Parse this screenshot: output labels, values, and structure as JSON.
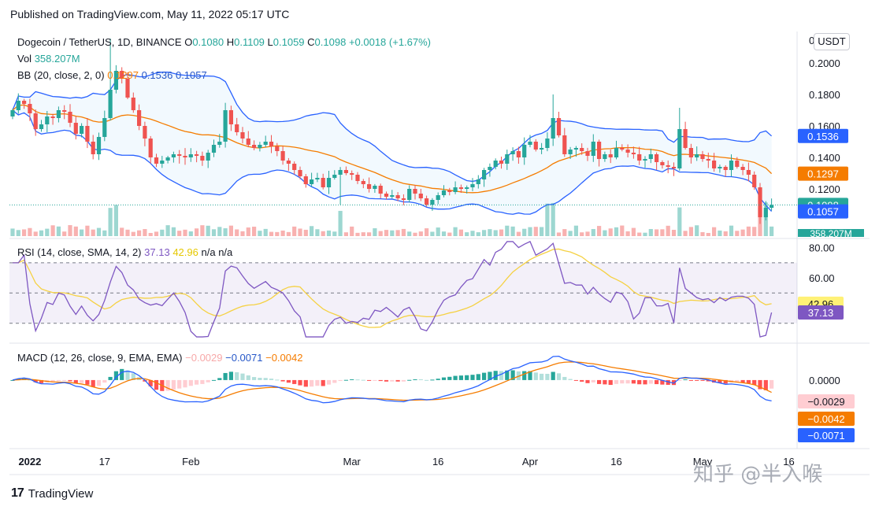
{
  "header": {
    "published": "Published on TradingView.com, May 11, 2022 05:17 UTC"
  },
  "symbol_legend": {
    "name": "Dogecoin / TetherUS, 1D, BINANCE",
    "o_label": "O",
    "o": "0.1080",
    "h_label": "H",
    "h": "0.1109",
    "l_label": "L",
    "l": "0.1059",
    "c_label": "C",
    "c": "0.1098",
    "change": "+0.0018 (+1.67%)"
  },
  "vol_legend": {
    "label": "Vol",
    "value": "358.207M"
  },
  "bb_legend": {
    "label": "BB (20, close, 2, 0)",
    "basis": "0.1297",
    "upper": "0.1536",
    "lower": "0.1057"
  },
  "rsi_legend": {
    "label": "RSI (14, close, SMA, 14, 2)",
    "rsi": "37.13",
    "sma": "42.96",
    "na1": "n/a",
    "na2": "n/a"
  },
  "macd_legend": {
    "label": "MACD (12, 26, close, 9, EMA, EMA)",
    "hist": "−0.0029",
    "macd": "−0.0071",
    "signal": "−0.0042"
  },
  "currency_button": "USDT",
  "footer": {
    "brand": "TradingView",
    "logo": "17"
  },
  "watermark": "知乎 @半入喉",
  "colors": {
    "up": "#26a69a",
    "down": "#ef5350",
    "bb_basis": "#f57c00",
    "bb_band": "#2962ff",
    "rsi": "#7e57c2",
    "rsi_sma": "#f5d142",
    "macd": "#2962ff",
    "signal": "#f57c00"
  },
  "chart_data": [
    {
      "type": "candlestick",
      "title": "Dogecoin / TetherUS, 1D, BINANCE",
      "ylim": [
        0.09,
        0.22
      ],
      "yticks": [
        "0.2000",
        "0.1800",
        "0.1600",
        "0.1400",
        "0.1200"
      ],
      "ytick_values": [
        0.2,
        0.18,
        0.16,
        0.14,
        0.12
      ],
      "y_top_partial_label": "0",
      "xticks": [
        {
          "label": "2022",
          "day": 3,
          "bold": true
        },
        {
          "label": "17",
          "day": 16
        },
        {
          "label": "Feb",
          "day": 31
        },
        {
          "label": "Mar",
          "day": 59
        },
        {
          "label": "16",
          "day": 74
        },
        {
          "label": "Apr",
          "day": 90
        },
        {
          "label": "16",
          "day": 105
        },
        {
          "label": "May",
          "day": 120
        },
        {
          "label": "16",
          "day": 135
        }
      ],
      "close": [
        0.17,
        0.176,
        0.174,
        0.168,
        0.158,
        0.161,
        0.166,
        0.165,
        0.17,
        0.169,
        0.162,
        0.155,
        0.16,
        0.15,
        0.142,
        0.153,
        0.165,
        0.183,
        0.195,
        0.19,
        0.178,
        0.17,
        0.16,
        0.152,
        0.14,
        0.136,
        0.138,
        0.14,
        0.142,
        0.141,
        0.14,
        0.142,
        0.141,
        0.138,
        0.143,
        0.148,
        0.15,
        0.17,
        0.161,
        0.156,
        0.152,
        0.148,
        0.146,
        0.148,
        0.15,
        0.147,
        0.144,
        0.138,
        0.136,
        0.132,
        0.128,
        0.123,
        0.126,
        0.127,
        0.121,
        0.127,
        0.129,
        0.132,
        0.13,
        0.129,
        0.125,
        0.123,
        0.12,
        0.122,
        0.117,
        0.115,
        0.116,
        0.114,
        0.113,
        0.12,
        0.117,
        0.114,
        0.11,
        0.113,
        0.116,
        0.119,
        0.118,
        0.121,
        0.12,
        0.121,
        0.123,
        0.126,
        0.132,
        0.134,
        0.138,
        0.136,
        0.142,
        0.144,
        0.14,
        0.148,
        0.15,
        0.145,
        0.146,
        0.152,
        0.165,
        0.154,
        0.142,
        0.145,
        0.146,
        0.144,
        0.141,
        0.15,
        0.139,
        0.142,
        0.14,
        0.146,
        0.145,
        0.143,
        0.142,
        0.138,
        0.139,
        0.142,
        0.137,
        0.135,
        0.134,
        0.133,
        0.158,
        0.146,
        0.14,
        0.142,
        0.139,
        0.138,
        0.133,
        0.134,
        0.132,
        0.138,
        0.134,
        0.132,
        0.129,
        0.121,
        0.102,
        0.108,
        0.1098
      ],
      "volume_last": "358.207M",
      "bb": {
        "basis": 0.1297,
        "upper": 0.1536,
        "lower": 0.1057
      },
      "last_price": 0.1098
    },
    {
      "type": "line",
      "title": "RSI (14, close, SMA, 14, 2)",
      "ylim": [
        20,
        85
      ],
      "yticks": [
        "80.00",
        "60.00"
      ],
      "ytick_values": [
        80,
        60
      ],
      "bands": [
        70,
        50,
        30
      ],
      "series": [
        {
          "name": "RSI",
          "last": 37.13
        },
        {
          "name": "SMA",
          "last": 42.96
        }
      ]
    },
    {
      "type": "line",
      "title": "MACD (12, 26, close, 9, EMA, EMA)",
      "ylim": [
        -0.022,
        0.0115
      ],
      "yticks": [
        "0.0000"
      ],
      "ytick_values": [
        0
      ],
      "series": [
        {
          "name": "MACD",
          "last": -0.0071
        },
        {
          "name": "Signal",
          "last": -0.0042
        },
        {
          "name": "Histogram",
          "last": -0.0029
        }
      ]
    }
  ]
}
